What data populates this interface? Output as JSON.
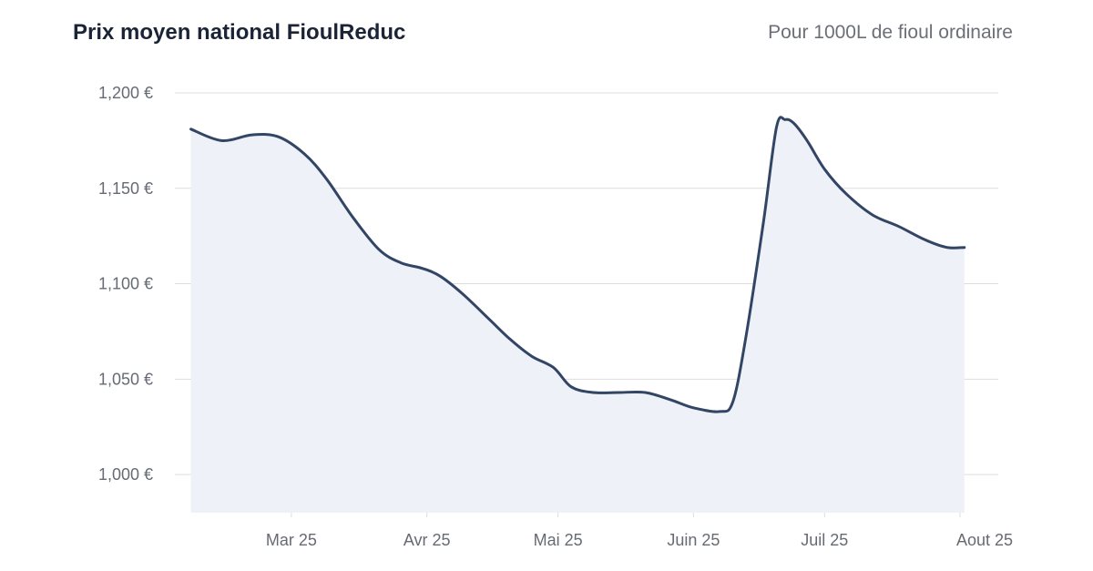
{
  "header": {
    "title": "Prix moyen national FioulReduc",
    "subtitle": "Pour 1000L de fioul ordinaire"
  },
  "colors": {
    "line": "#334564",
    "area": "#eef1f8",
    "grid": "#dddddd",
    "text": "#666b73"
  },
  "chart_data": {
    "type": "area",
    "title": "Prix moyen national FioulReduc",
    "subtitle": "Pour 1000L de fioul ordinaire",
    "xlabel": "",
    "ylabel": "",
    "ylim": [
      980,
      1200
    ],
    "y_ticks": [
      1000,
      1050,
      1100,
      1150,
      1200
    ],
    "y_tick_labels": [
      "1,000 €",
      "1,050 €",
      "1,100 €",
      "1,150 €",
      "1,200 €"
    ],
    "x_ticks": [
      "2025-03-01",
      "2025-04-01",
      "2025-05-01",
      "2025-06-01",
      "2025-07-01",
      "2025-08-01"
    ],
    "x_tick_labels": [
      "Mar 25",
      "Avr 25",
      "Mai 25",
      "Juin 25",
      "Juil 25",
      "Aout 25"
    ],
    "grid": true,
    "series": [
      {
        "points": [
          {
            "x": "2025-02-06",
            "y": 1181
          },
          {
            "x": "2025-02-13",
            "y": 1175
          },
          {
            "x": "2025-02-20",
            "y": 1178
          },
          {
            "x": "2025-02-26",
            "y": 1177
          },
          {
            "x": "2025-03-04",
            "y": 1168
          },
          {
            "x": "2025-03-09",
            "y": 1155
          },
          {
            "x": "2025-03-15",
            "y": 1135
          },
          {
            "x": "2025-03-21",
            "y": 1118
          },
          {
            "x": "2025-03-26",
            "y": 1111
          },
          {
            "x": "2025-03-31",
            "y": 1108
          },
          {
            "x": "2025-04-04",
            "y": 1104
          },
          {
            "x": "2025-04-09",
            "y": 1095
          },
          {
            "x": "2025-04-15",
            "y": 1082
          },
          {
            "x": "2025-04-20",
            "y": 1071
          },
          {
            "x": "2025-04-25",
            "y": 1062
          },
          {
            "x": "2025-04-30",
            "y": 1056
          },
          {
            "x": "2025-05-04",
            "y": 1046
          },
          {
            "x": "2025-05-09",
            "y": 1043
          },
          {
            "x": "2025-05-15",
            "y": 1043
          },
          {
            "x": "2025-05-21",
            "y": 1043
          },
          {
            "x": "2025-05-27",
            "y": 1039
          },
          {
            "x": "2025-06-01",
            "y": 1035
          },
          {
            "x": "2025-06-07",
            "y": 1033
          },
          {
            "x": "2025-06-10",
            "y": 1038
          },
          {
            "x": "2025-06-13",
            "y": 1072
          },
          {
            "x": "2025-06-17",
            "y": 1132
          },
          {
            "x": "2025-06-20",
            "y": 1182
          },
          {
            "x": "2025-06-22",
            "y": 1186
          },
          {
            "x": "2025-06-24",
            "y": 1184
          },
          {
            "x": "2025-06-27",
            "y": 1175
          },
          {
            "x": "2025-07-01",
            "y": 1160
          },
          {
            "x": "2025-07-06",
            "y": 1147
          },
          {
            "x": "2025-07-12",
            "y": 1136
          },
          {
            "x": "2025-07-18",
            "y": 1130
          },
          {
            "x": "2025-07-24",
            "y": 1123
          },
          {
            "x": "2025-07-29",
            "y": 1119
          },
          {
            "x": "2025-08-02",
            "y": 1119
          }
        ]
      }
    ]
  }
}
